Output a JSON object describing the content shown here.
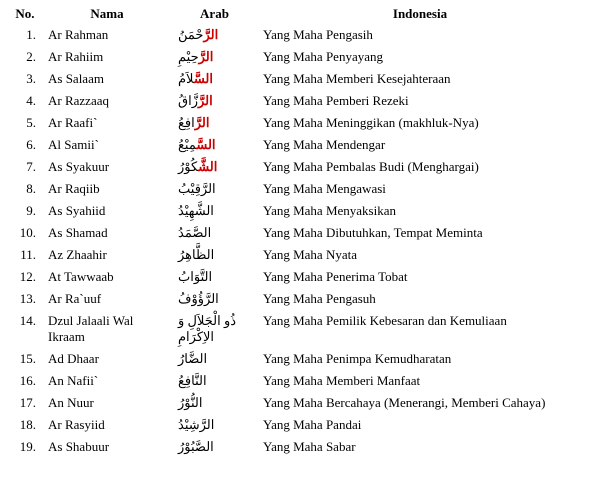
{
  "headers": {
    "no": "No.",
    "nama": "Nama",
    "arab": "Arab",
    "indo": "Indonesia"
  },
  "colors": {
    "text": "#000000",
    "arab_prefix": "#cc0000",
    "background": "#ffffff"
  },
  "font": {
    "family": "Times New Roman",
    "size": 13
  },
  "rows": [
    {
      "no": "1.",
      "nama": "Ar Rahman",
      "arab_prefix": "الرَّ",
      "arab_rest": "حْمَنُ",
      "indo": "Yang Maha Pengasih"
    },
    {
      "no": "2.",
      "nama": "Ar Rahiim",
      "arab_prefix": "الرَّ",
      "arab_rest": "حِيْمِ",
      "indo": "Yang Maha Penyayang"
    },
    {
      "no": "3.",
      "nama": "As Salaam",
      "arab_prefix": "السَّ",
      "arab_rest": "لاَمُ",
      "indo": "Yang Maha Memberi Kesejahteraan"
    },
    {
      "no": "4.",
      "nama": "Ar Razzaaq",
      "arab_prefix": "الرَّ",
      "arab_rest": "زَّاقُ",
      "indo": "Yang Maha Pemberi Rezeki"
    },
    {
      "no": "5.",
      "nama": "Ar Raafi`",
      "arab_prefix": "الرَّ",
      "arab_rest": "افِعُ",
      "indo": "Yang Maha Meninggikan (makhluk-Nya)"
    },
    {
      "no": "6.",
      "nama": "Al Samii`",
      "arab_prefix": "السَّ",
      "arab_rest": "مِيْعُ",
      "indo": "Yang Maha Mendengar"
    },
    {
      "no": "7.",
      "nama": "As Syakuur",
      "arab_prefix": "الشَّ",
      "arab_rest": "كُوْرُ",
      "indo": "Yang Maha Pembalas Budi (Menghargai)"
    },
    {
      "no": "8.",
      "nama": "Ar Raqiib",
      "arab_prefix": "",
      "arab_rest": "الرَّقِيْبُ",
      "indo": "Yang Maha Mengawasi"
    },
    {
      "no": "9.",
      "nama": "As Syahiid",
      "arab_prefix": "",
      "arab_rest": "الشَّهِيْدُ",
      "indo": "Yang Maha Menyaksikan"
    },
    {
      "no": "10.",
      "nama": "As Shamad",
      "arab_prefix": "",
      "arab_rest": "الصَّمَدُ",
      "indo": "Yang Maha Dibutuhkan, Tempat Meminta"
    },
    {
      "no": "11.",
      "nama": "Az Zhaahir",
      "arab_prefix": "",
      "arab_rest": "الظَّاهِرُ",
      "indo": "Yang Maha Nyata"
    },
    {
      "no": "12.",
      "nama": "At Tawwaab",
      "arab_prefix": "",
      "arab_rest": "التَّوَابُ",
      "indo": "Yang Maha Penerima Tobat"
    },
    {
      "no": "13.",
      "nama": "Ar Ra`uuf",
      "arab_prefix": "",
      "arab_rest": "الرَّؤُوْفُ",
      "indo": "Yang Maha Pengasuh"
    },
    {
      "no": "14.",
      "nama": "Dzul Jalaali Wal Ikraam",
      "arab_prefix": "",
      "arab_rest": "ذُو الْجَلاَلِ وَ الاِكْرَامِ",
      "indo": "Yang Maha Pemilik Kebesaran dan Kemuliaan"
    },
    {
      "no": "15.",
      "nama": "Ad Dhaar",
      "arab_prefix": "",
      "arab_rest": "الضَّارُ",
      "indo": "Yang Maha Penimpa Kemudharatan"
    },
    {
      "no": "16.",
      "nama": "An Nafii`",
      "arab_prefix": "",
      "arab_rest": "النَّافِعُ",
      "indo": "Yang Maha Memberi Manfaat"
    },
    {
      "no": "17.",
      "nama": "An Nuur",
      "arab_prefix": "",
      "arab_rest": "النُّوْرُ",
      "indo": "Yang Maha Bercahaya (Menerangi, Memberi Cahaya)"
    },
    {
      "no": "18.",
      "nama": "Ar Rasyiid",
      "arab_prefix": "",
      "arab_rest": "الرَّشِيْدُ",
      "indo": "Yang Maha Pandai"
    },
    {
      "no": "19.",
      "nama": "As Shabuur",
      "arab_prefix": "",
      "arab_rest": "الصَّبُوْرُ",
      "indo": "Yang Maha Sabar"
    }
  ]
}
